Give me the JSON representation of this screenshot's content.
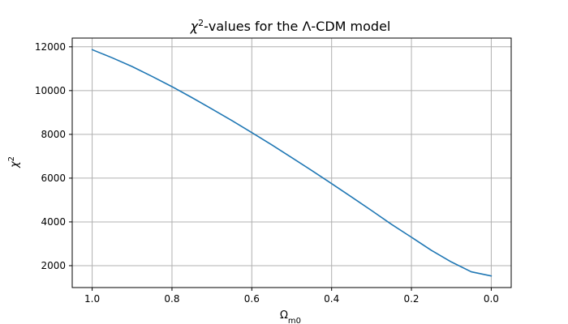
{
  "chart_data": {
    "type": "line",
    "title_parts": {
      "symbol": "χ",
      "power": "2",
      "rest": "-values for the Λ-CDM model"
    },
    "xlabel_parts": {
      "base": "Ω",
      "sub": "m0"
    },
    "ylabel_parts": {
      "symbol": "χ",
      "power": "2"
    },
    "x_reversed": true,
    "xlim": [
      1.05,
      -0.05
    ],
    "ylim": [
      1000,
      12400
    ],
    "x_ticks": [
      1.0,
      0.8,
      0.6,
      0.4,
      0.2,
      0.0
    ],
    "x_tick_labels": [
      "1.0",
      "0.8",
      "0.6",
      "0.4",
      "0.2",
      "0.0"
    ],
    "y_ticks": [
      2000,
      4000,
      6000,
      8000,
      10000,
      12000
    ],
    "y_tick_labels": [
      "2000",
      "4000",
      "6000",
      "8000",
      "10000",
      "12000"
    ],
    "grid": true,
    "line_color": "#1f77b4",
    "grid_color": "#b0b0b0",
    "series": [
      {
        "x": [
          1.0,
          0.95,
          0.9,
          0.85,
          0.8,
          0.75,
          0.7,
          0.65,
          0.6,
          0.55,
          0.5,
          0.45,
          0.4,
          0.35,
          0.3,
          0.25,
          0.2,
          0.15,
          0.1,
          0.05,
          0.0
        ],
        "y": [
          11870,
          11500,
          11100,
          10650,
          10180,
          9680,
          9160,
          8630,
          8080,
          7520,
          6940,
          6350,
          5750,
          5140,
          4520,
          3890,
          3300,
          2700,
          2170,
          1720,
          1530
        ]
      }
    ]
  }
}
